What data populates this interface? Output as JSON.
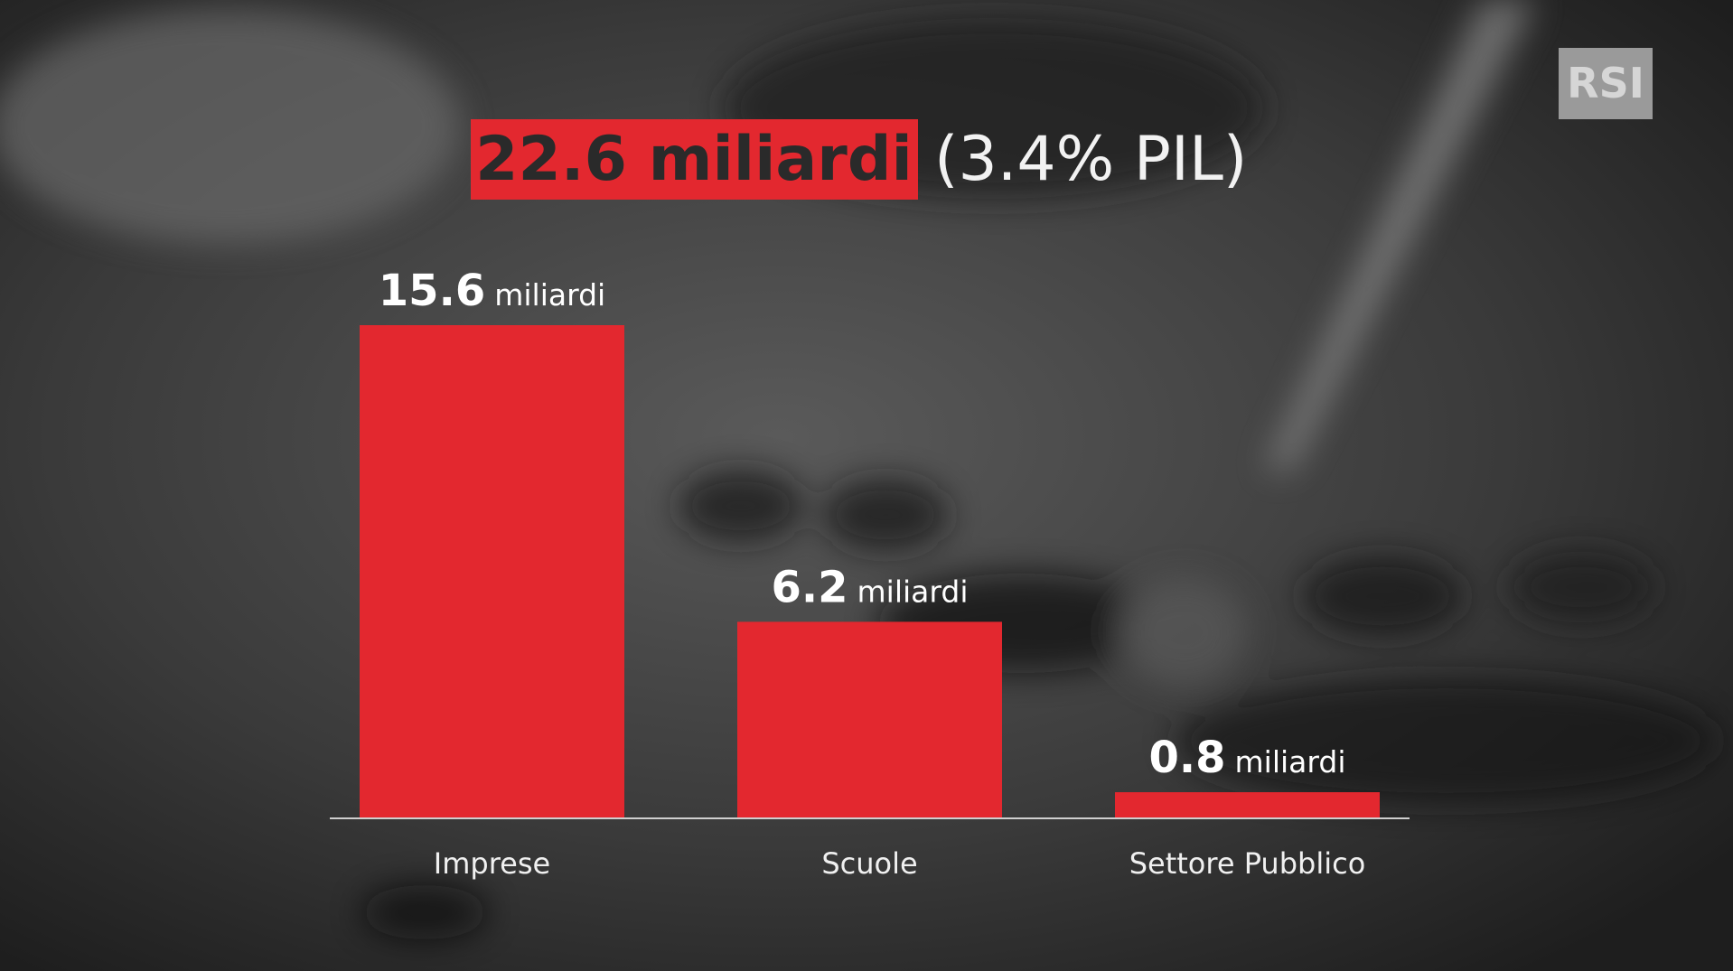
{
  "chart_data": {
    "type": "bar",
    "title": "22.6 miliardi",
    "subtitle": "(3.4% PIL)",
    "logo": "RSI",
    "categories": [
      "Imprese",
      "Scuole",
      "Settore Pubblico"
    ],
    "values": [
      15.6,
      6.2,
      0.8
    ],
    "unit": "miliardi",
    "color": "#e3282f"
  }
}
